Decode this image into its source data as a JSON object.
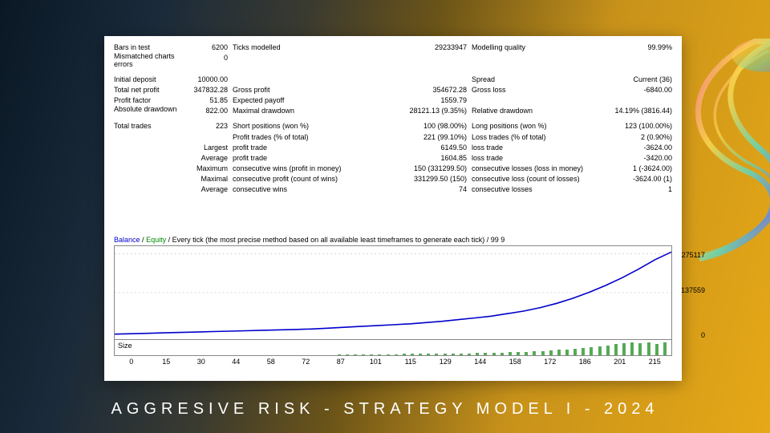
{
  "caption": "AGGRESIVE RISK - STRATEGY MODEL I - 2024",
  "colors": {
    "panel_bg": "#ffffff",
    "text": "#000000",
    "balance_line": "#0000cc",
    "equity_text": "#008800",
    "size_bar": "#55aa55",
    "axis": "#888888"
  },
  "stats": {
    "bars_in_test": {
      "label": "Bars in test",
      "value": "6200"
    },
    "ticks_modelled": {
      "label": "Ticks modelled",
      "value": "29233947"
    },
    "modelling_quality": {
      "label": "Modelling quality",
      "value": "99.99%"
    },
    "mismatched": {
      "label": "Mismatched charts errors",
      "value": "0"
    },
    "initial_deposit": {
      "label": "Initial deposit",
      "value": "10000.00"
    },
    "spread": {
      "label": "Spread",
      "value": "Current (36)"
    },
    "total_net_profit": {
      "label": "Total net profit",
      "value": "347832.28"
    },
    "gross_profit": {
      "label": "Gross profit",
      "value": "354672.28"
    },
    "gross_loss": {
      "label": "Gross loss",
      "value": "-6840.00"
    },
    "profit_factor": {
      "label": "Profit factor",
      "value": "51.85"
    },
    "expected_payoff": {
      "label": "Expected payoff",
      "value": "1559.79"
    },
    "abs_dd": {
      "label": "Absolute drawdown",
      "value": "822.00"
    },
    "max_dd": {
      "label": "Maximal drawdown",
      "value": "28121.13 (9.35%)"
    },
    "rel_dd": {
      "label": "Relative drawdown",
      "value": "14.19% (3816.44)"
    },
    "total_trades": {
      "label": "Total trades",
      "value": "223"
    },
    "short_pos": {
      "label": "Short positions (won %)",
      "value": "100 (98.00%)"
    },
    "long_pos": {
      "label": "Long positions (won %)",
      "value": "123 (100.00%)"
    },
    "profit_trades": {
      "label": "Profit trades (% of total)",
      "value": "221 (99.10%)"
    },
    "loss_trades": {
      "label": "Loss trades (% of total)",
      "value": "2 (0.90%)"
    },
    "largest": "Largest",
    "largest_profit": {
      "label": "profit trade",
      "value": "6149.50"
    },
    "largest_loss": {
      "label": "loss trade",
      "value": "-3624.00"
    },
    "average": "Average",
    "avg_profit": {
      "label": "profit trade",
      "value": "1604.85"
    },
    "avg_loss": {
      "label": "loss trade",
      "value": "-3420.00"
    },
    "maximum": "Maximum",
    "max_cons_wins": {
      "label": "consecutive wins (profit in money)",
      "value": "150 (331299.50)"
    },
    "max_cons_losses": {
      "label": "consecutive losses (loss in money)",
      "value": "1 (-3624.00)"
    },
    "maximal": "Maximal",
    "maxl_profit": {
      "label": "consecutive profit (count of wins)",
      "value": "331299.50 (150)"
    },
    "maxl_loss": {
      "label": "consecutive loss (count of losses)",
      "value": "-3624.00 (1)"
    },
    "avg_row": "Average",
    "avg_cons_wins": {
      "label": "consecutive wins",
      "value": "74"
    },
    "avg_cons_losses": {
      "label": "consecutive losses",
      "value": "1"
    }
  },
  "chart": {
    "legend_balance": "Balance",
    "legend_equity": "Equity",
    "legend_rest": " / Every tick (the most precise method based on all available least timeframes to generate each tick) / 99 9",
    "y_ticks": [
      "275117",
      "137559",
      "0"
    ],
    "x_ticks": [
      "0",
      "15",
      "30",
      "44",
      "58",
      "72",
      "87",
      "101",
      "115",
      "129",
      "144",
      "158",
      "172",
      "186",
      "201",
      "215"
    ],
    "size_label": "Size",
    "balance_curve": [
      0.04,
      0.045,
      0.05,
      0.055,
      0.06,
      0.065,
      0.07,
      0.075,
      0.08,
      0.085,
      0.09,
      0.095,
      0.1,
      0.11,
      0.12,
      0.13,
      0.14,
      0.15,
      0.16,
      0.175,
      0.19,
      0.21,
      0.23,
      0.25,
      0.28,
      0.31,
      0.35,
      0.4,
      0.46,
      0.53,
      0.61,
      0.7,
      0.8,
      0.91,
      1.0
    ],
    "size_bars": [
      0.06,
      0.06,
      0.07,
      0.07,
      0.08,
      0.08,
      0.09,
      0.09,
      0.1,
      0.1,
      0.11,
      0.11,
      0.12,
      0.13,
      0.13,
      0.14,
      0.15,
      0.16,
      0.17,
      0.18,
      0.2,
      0.22,
      0.24,
      0.27,
      0.3,
      0.33,
      0.37,
      0.41,
      0.46,
      0.51,
      0.57,
      0.63,
      0.7,
      0.78,
      0.86,
      0.95,
      1.0,
      0.92,
      1.0,
      0.88,
      1.0
    ]
  }
}
